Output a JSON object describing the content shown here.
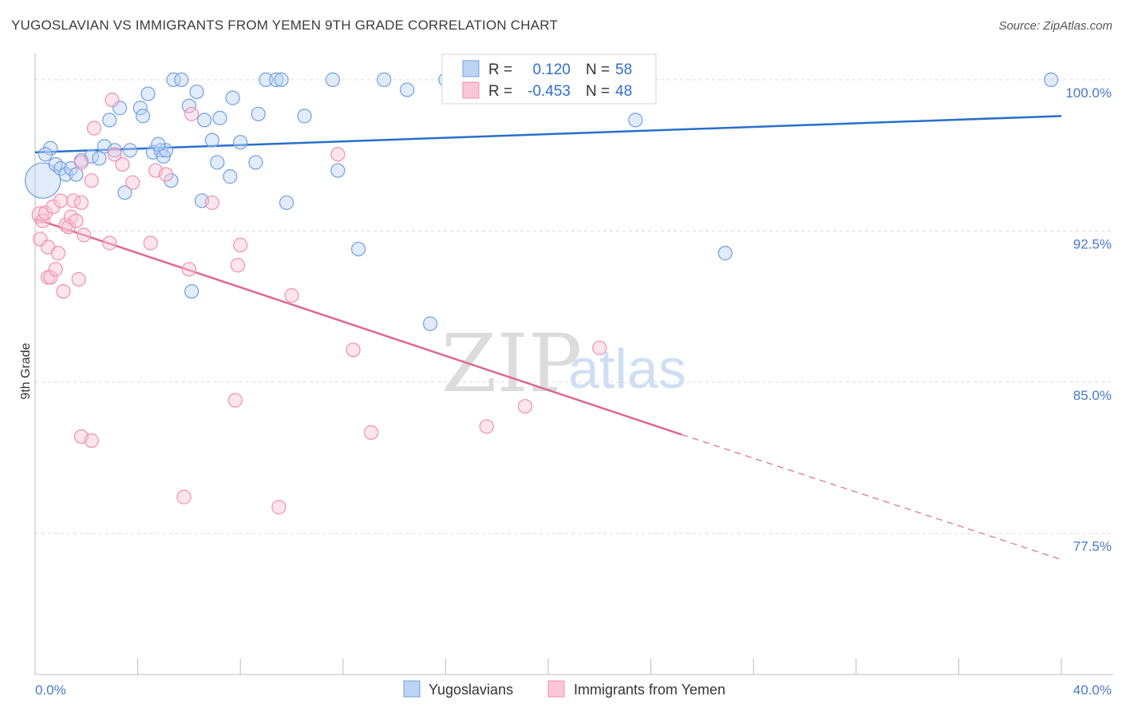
{
  "header": {
    "title": "YUGOSLAVIAN VS IMMIGRANTS FROM YEMEN 9TH GRADE CORRELATION CHART",
    "source": "Source: ZipAtlas.com"
  },
  "watermark": {
    "zip": "ZIP",
    "atlas": "atlas"
  },
  "stats_box": {
    "rows": [
      {
        "r_label": "R =",
        "r_value": "0.120",
        "n_label": "N =",
        "n_value": "58",
        "color": "#6fa0e0"
      },
      {
        "r_label": "R =",
        "r_value": "-0.453",
        "n_label": "N =",
        "n_value": "48",
        "color": "#f08fb0"
      }
    ]
  },
  "legend": {
    "items": [
      {
        "label": "Yugoslavians",
        "color": "#6fa0e0"
      },
      {
        "label": "Immigrants from Yemen",
        "color": "#f08fb0"
      }
    ]
  },
  "chart_data": {
    "type": "scatter",
    "ylabel": "9th Grade",
    "xlim": [
      0,
      40
    ],
    "ylim": [
      70.5,
      101.5
    ],
    "x_tick_labels": [
      {
        "value": 0,
        "label": "0.0%"
      },
      {
        "value": 40,
        "label": "40.0%"
      }
    ],
    "y_ticks": [
      {
        "value": 100,
        "label": "100.0%"
      },
      {
        "value": 92.5,
        "label": "92.5%"
      },
      {
        "value": 85,
        "label": "85.0%"
      },
      {
        "value": 77.5,
        "label": "77.5%"
      }
    ],
    "grid": true,
    "colors": {
      "blue_stroke": "#6fa0e0",
      "blue_fill": "#bcd3f3",
      "blue_line": "#2a6fcb",
      "pink_stroke": "#f08fb0",
      "pink_fill": "#fac6d8",
      "pink_line": "#e0678f"
    },
    "series": [
      {
        "name": "Yugoslavians",
        "trend": {
          "x0": 0,
          "y0": 96.4,
          "x1": 40,
          "y1": 98.2
        },
        "points": [
          [
            0.3,
            95.0,
            2.6
          ],
          [
            0.6,
            96.6,
            1
          ],
          [
            0.4,
            96.3,
            1
          ],
          [
            0.8,
            95.8,
            1
          ],
          [
            1.0,
            95.6,
            1
          ],
          [
            1.2,
            95.3,
            1
          ],
          [
            1.4,
            95.6,
            1
          ],
          [
            1.6,
            95.3,
            1
          ],
          [
            1.8,
            96.0,
            1
          ],
          [
            2.2,
            96.2,
            1
          ],
          [
            2.5,
            96.1,
            1
          ],
          [
            2.7,
            96.7,
            1
          ],
          [
            3.1,
            96.5,
            1
          ],
          [
            2.9,
            98.0,
            1
          ],
          [
            3.3,
            98.6,
            1
          ],
          [
            3.5,
            94.4,
            1
          ],
          [
            3.7,
            96.5,
            1
          ],
          [
            4.1,
            98.6,
            1
          ],
          [
            4.2,
            98.2,
            1
          ],
          [
            4.4,
            99.3,
            1
          ],
          [
            4.6,
            96.4,
            1
          ],
          [
            4.9,
            96.5,
            1
          ],
          [
            5.0,
            96.2,
            1
          ],
          [
            5.1,
            96.5,
            1
          ],
          [
            5.3,
            95.0,
            1
          ],
          [
            5.4,
            100.0,
            1
          ],
          [
            5.7,
            100.0,
            1
          ],
          [
            6.0,
            98.7,
            1
          ],
          [
            6.1,
            89.5,
            1
          ],
          [
            6.3,
            99.4,
            1
          ],
          [
            6.6,
            98.0,
            1
          ],
          [
            6.9,
            97.0,
            1
          ],
          [
            7.1,
            95.9,
            1
          ],
          [
            7.2,
            98.1,
            1
          ],
          [
            7.6,
            95.2,
            1
          ],
          [
            7.7,
            99.1,
            1
          ],
          [
            8.0,
            96.9,
            1
          ],
          [
            8.6,
            95.9,
            1
          ],
          [
            8.7,
            98.3,
            1
          ],
          [
            9.0,
            100.0,
            1
          ],
          [
            9.4,
            100.0,
            1
          ],
          [
            9.6,
            100.0,
            1
          ],
          [
            9.8,
            93.9,
            1
          ],
          [
            10.5,
            98.2,
            1
          ],
          [
            11.6,
            100.0,
            1
          ],
          [
            11.8,
            95.5,
            1
          ],
          [
            12.6,
            91.6,
            1
          ],
          [
            13.6,
            100.0,
            1
          ],
          [
            14.5,
            99.5,
            1
          ],
          [
            15.4,
            87.9,
            1
          ],
          [
            16.0,
            100.0,
            1
          ],
          [
            17.6,
            100.0,
            1
          ],
          [
            20.8,
            100.0,
            1
          ],
          [
            23.4,
            98.0,
            1
          ],
          [
            26.9,
            91.4,
            1
          ],
          [
            39.6,
            100.0,
            1
          ],
          [
            6.5,
            94.0,
            1
          ],
          [
            4.8,
            96.8,
            1
          ]
        ]
      },
      {
        "name": "Immigrants from Yemen",
        "trend": {
          "x0": 0,
          "y0": 93.1,
          "x1": 25.2,
          "y1": 82.4,
          "dash_x1": 40,
          "dash_y1": 76.2
        },
        "points": [
          [
            0.2,
            93.3,
            1.2
          ],
          [
            0.3,
            93.0,
            1
          ],
          [
            0.2,
            92.1,
            1
          ],
          [
            0.4,
            93.4,
            1
          ],
          [
            0.5,
            90.2,
            1
          ],
          [
            0.5,
            91.7,
            1
          ],
          [
            0.6,
            90.2,
            1
          ],
          [
            0.7,
            93.7,
            1
          ],
          [
            0.8,
            90.6,
            1
          ],
          [
            0.9,
            91.4,
            1
          ],
          [
            1.0,
            94.0,
            1
          ],
          [
            1.1,
            89.5,
            1
          ],
          [
            1.2,
            92.8,
            1
          ],
          [
            1.3,
            92.7,
            1
          ],
          [
            1.4,
            93.2,
            1
          ],
          [
            1.5,
            94.0,
            1
          ],
          [
            1.6,
            93.0,
            1
          ],
          [
            1.7,
            90.1,
            1
          ],
          [
            1.8,
            93.9,
            1
          ],
          [
            1.9,
            92.3,
            1
          ],
          [
            2.2,
            95.0,
            1
          ],
          [
            2.3,
            97.6,
            1
          ],
          [
            1.8,
            95.9,
            1
          ],
          [
            3.0,
            99.0,
            1
          ],
          [
            3.4,
            95.8,
            1
          ],
          [
            3.8,
            94.9,
            1
          ],
          [
            2.9,
            91.9,
            1
          ],
          [
            3.1,
            96.3,
            1
          ],
          [
            4.5,
            91.9,
            1
          ],
          [
            4.7,
            95.5,
            1
          ],
          [
            5.1,
            95.3,
            1
          ],
          [
            6.0,
            90.6,
            1
          ],
          [
            6.1,
            98.3,
            1
          ],
          [
            6.9,
            93.9,
            1
          ],
          [
            7.8,
            84.1,
            1
          ],
          [
            7.9,
            90.8,
            1
          ],
          [
            8.0,
            91.8,
            1
          ],
          [
            9.5,
            78.8,
            1
          ],
          [
            10.0,
            89.3,
            1
          ],
          [
            11.8,
            96.3,
            1
          ],
          [
            12.4,
            86.6,
            1
          ],
          [
            13.1,
            82.5,
            1
          ],
          [
            17.6,
            82.8,
            1
          ],
          [
            19.1,
            83.8,
            1
          ],
          [
            22.0,
            86.7,
            1
          ],
          [
            1.8,
            82.3,
            1
          ],
          [
            2.2,
            82.1,
            1
          ],
          [
            5.8,
            79.3,
            1
          ]
        ]
      }
    ]
  }
}
